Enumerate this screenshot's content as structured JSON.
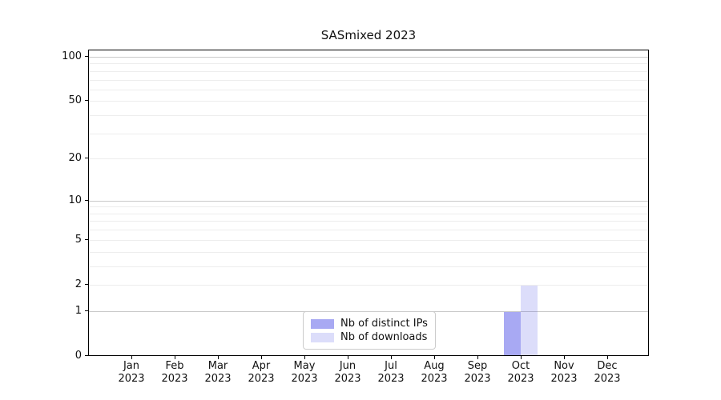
{
  "chart_data": {
    "type": "bar",
    "title": "SASmixed 2023",
    "months": [
      "Jan",
      "Feb",
      "Mar",
      "Apr",
      "May",
      "Jun",
      "Jul",
      "Aug",
      "Sep",
      "Oct",
      "Nov",
      "Dec"
    ],
    "year": "2023",
    "series": [
      {
        "name": "Nb of distinct IPs",
        "values": [
          0,
          0,
          0,
          0,
          0,
          0,
          0,
          0,
          0,
          1,
          0,
          0
        ],
        "color": "rgba(81,83,231,0.50)",
        "color_hex": "#a8a9f3"
      },
      {
        "name": "Nb of downloads",
        "values": [
          0,
          0,
          0,
          0,
          0,
          0,
          0,
          0,
          0,
          2,
          0,
          0
        ],
        "color": "rgba(81,83,231,0.20)",
        "color_hex": "#dcdcf7"
      }
    ],
    "yscale": "log1p",
    "ylim": [
      0,
      100
    ],
    "y_labeled_ticks": [
      0,
      1,
      2,
      5,
      10,
      20,
      50,
      100
    ],
    "y_major_gridlines": [
      1,
      10,
      100
    ],
    "y_minor_gridlines": [
      2,
      3,
      4,
      5,
      6,
      7,
      8,
      9,
      20,
      30,
      40,
      50,
      60,
      70,
      80,
      90
    ],
    "grid": "horizontal",
    "legend_position": "lower center",
    "axis_color": "#000000",
    "major_grid_color": "#c9c9c9",
    "minor_grid_color": "#ededed"
  }
}
